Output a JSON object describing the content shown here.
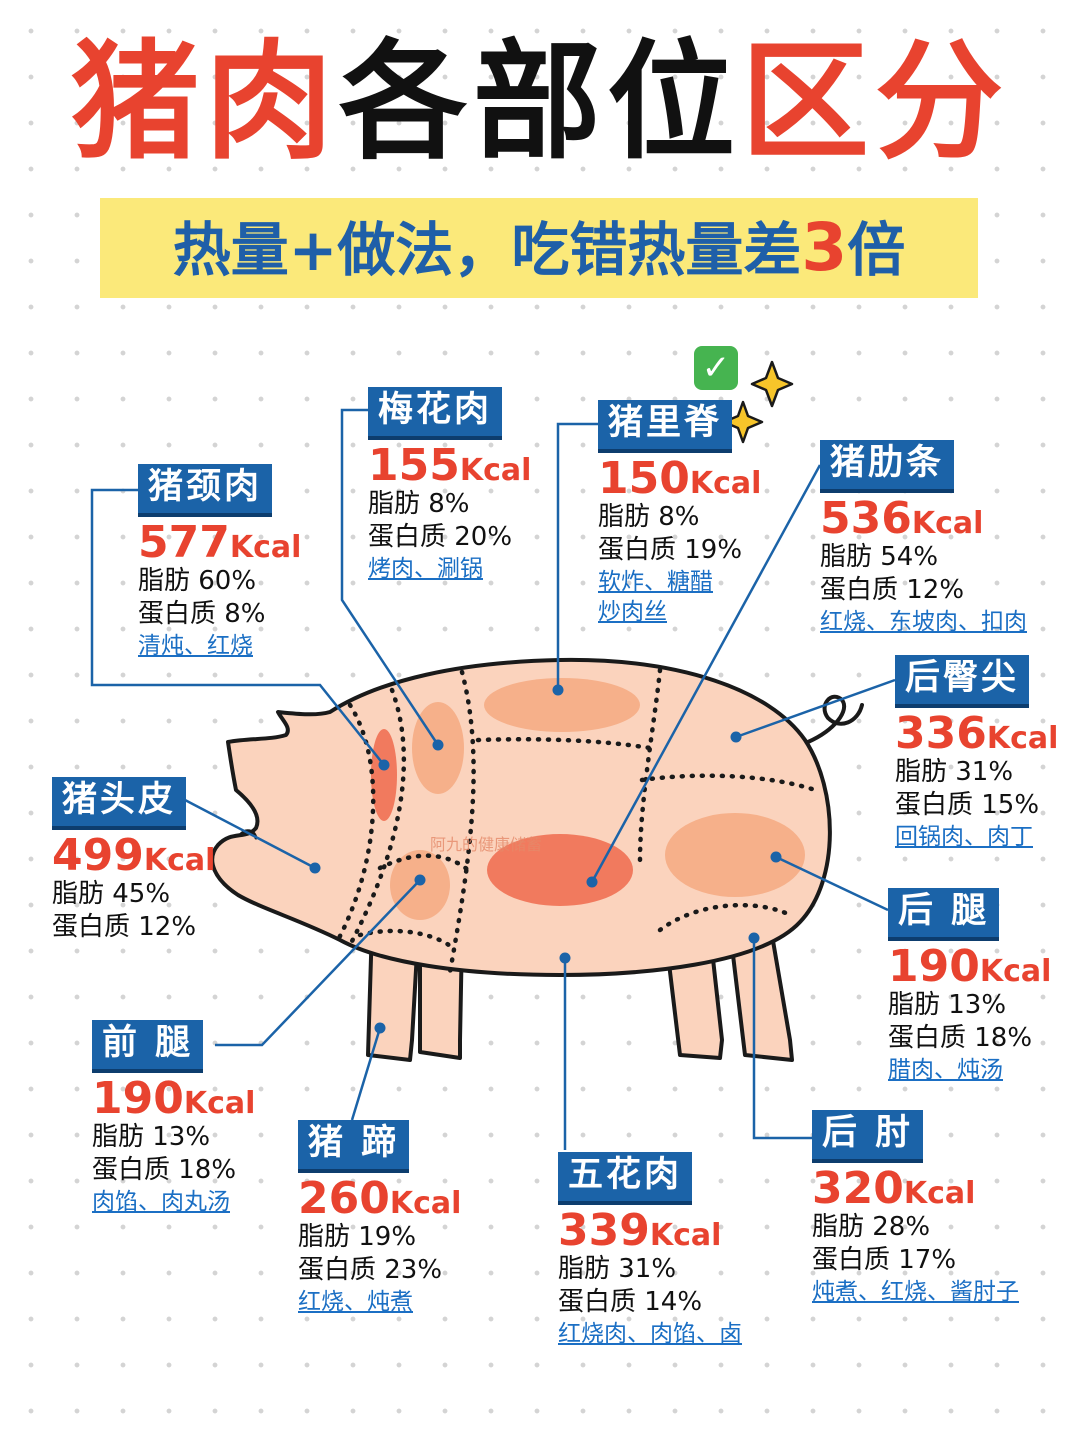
{
  "title": {
    "part1": "猪肉",
    "part2": "各部位",
    "part3": "区分"
  },
  "subtitle": {
    "text": "热量+做法，吃错热量差",
    "emphasis": "3",
    "tail": "倍"
  },
  "colors": {
    "title_red": "#e8432f",
    "label_blue": "#1b63a8",
    "highlight_yellow": "#fbe97a",
    "pig_body": "#fbd3bd",
    "spot_light": "#f6b08a",
    "spot_dark": "#f17a5e",
    "link_blue": "#1b6fc4"
  },
  "icons": [
    "check-mark-icon",
    "sparkle-icon"
  ],
  "watermark": "阿九的健康储蓄",
  "parts": [
    {
      "name": "猪颈肉",
      "kcal": "577",
      "unit": "Kcal",
      "fat": "脂肪 60%",
      "protein": "蛋白质 8%",
      "uses": "清炖、红烧"
    },
    {
      "name": "梅花肉",
      "kcal": "155",
      "unit": "Kcal",
      "fat": "脂肪 8%",
      "protein": "蛋白质 20%",
      "uses": "烤肉、涮锅"
    },
    {
      "name": "猪里脊",
      "kcal": "150",
      "unit": "Kcal",
      "fat": "脂肪 8%",
      "protein": "蛋白质 19%",
      "uses": "软炸、糖醋",
      "uses2": "炒肉丝"
    },
    {
      "name": "猪肋条",
      "kcal": "536",
      "unit": "Kcal",
      "fat": "脂肪 54%",
      "protein": "蛋白质 12%",
      "uses": "红烧、东坡肉、扣肉"
    },
    {
      "name": "后臀尖",
      "kcal": "336",
      "unit": "Kcal",
      "fat": "脂肪 31%",
      "protein": "蛋白质 15%",
      "uses": "回锅肉、肉丁"
    },
    {
      "name": "猪头皮",
      "kcal": "499",
      "unit": "Kcal",
      "fat": "脂肪 45%",
      "protein": "蛋白质 12%"
    },
    {
      "name": "后 腿",
      "kcal": "190",
      "unit": "Kcal",
      "fat": "脂肪 13%",
      "protein": "蛋白质 18%",
      "uses": "腊肉、炖汤"
    },
    {
      "name": "前 腿",
      "kcal": "190",
      "unit": "Kcal",
      "fat": "脂肪 13%",
      "protein": "蛋白质 18%",
      "uses": "肉馅、肉丸汤"
    },
    {
      "name": "猪 蹄",
      "kcal": "260",
      "unit": "Kcal",
      "fat": "脂肪 19%",
      "protein": "蛋白质 23%",
      "uses": "红烧、炖煮"
    },
    {
      "name": "五花肉",
      "kcal": "339",
      "unit": "Kcal",
      "fat": "脂肪 31%",
      "protein": "蛋白质 14%",
      "uses": "红烧肉、肉馅、卤"
    },
    {
      "name": "后 肘",
      "kcal": "320",
      "unit": "Kcal",
      "fat": "脂肪 28%",
      "protein": "蛋白质 17%",
      "uses": "炖煮、红烧、酱肘子"
    }
  ]
}
